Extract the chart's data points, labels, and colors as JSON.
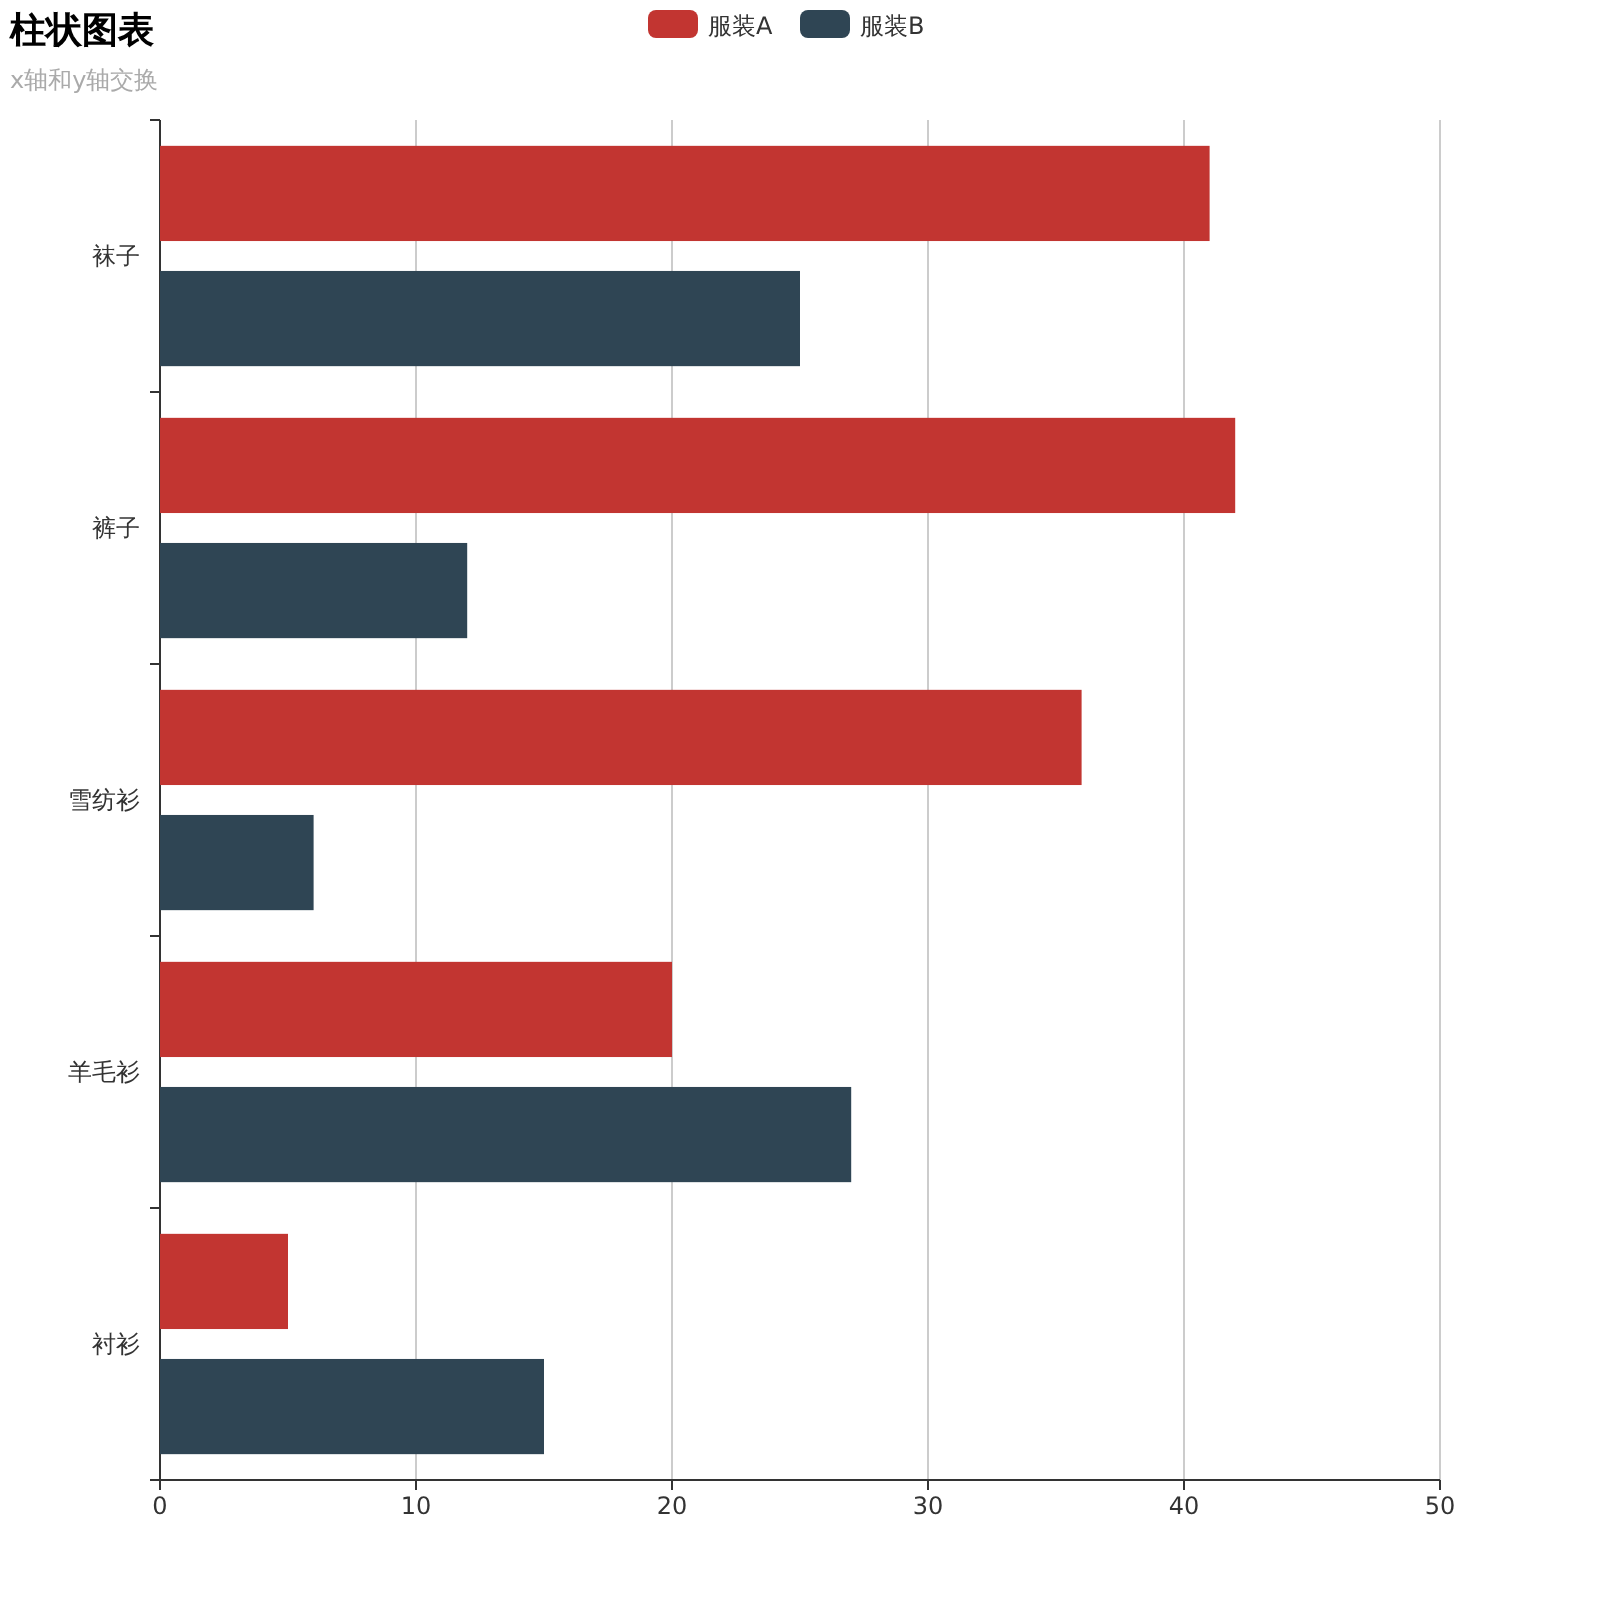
{
  "chart_data": {
    "type": "bar",
    "orientation": "horizontal",
    "title": "柱状图表",
    "subtitle": "x轴和y轴交换",
    "categories": [
      "袜子",
      "裤子",
      "雪纺衫",
      "羊毛衫",
      "衬衫"
    ],
    "series": [
      {
        "name": "服装A",
        "color": "#c23531",
        "values": [
          41,
          42,
          36,
          20,
          5
        ]
      },
      {
        "name": "服装B",
        "color": "#2f4554",
        "values": [
          25,
          12,
          6,
          27,
          15
        ]
      }
    ],
    "xlim": [
      0,
      50
    ],
    "xticks": [
      0,
      10,
      20,
      30,
      40,
      50
    ],
    "grid": "x",
    "legend": "top"
  }
}
